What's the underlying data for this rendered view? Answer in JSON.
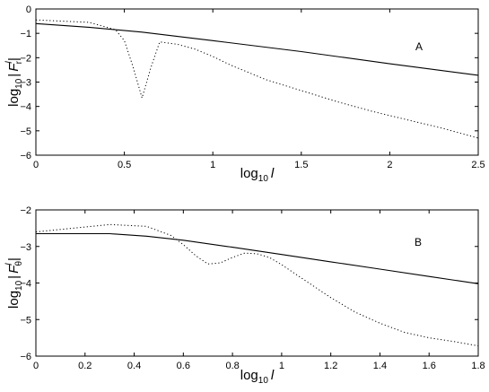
{
  "chart_data": [
    {
      "type": "line",
      "panel_label": "A",
      "xlabel": {
        "base": "log",
        "sub": "10",
        "var": "l"
      },
      "ylabel": {
        "base": "log",
        "sub": "10",
        "pre": "|",
        "var": "F",
        "sup": "l",
        "varsub": "r",
        "post": "|"
      },
      "xlim": [
        0,
        2.5
      ],
      "ylim": [
        -6,
        0
      ],
      "xticks": [
        0,
        0.5,
        1,
        1.5,
        2,
        2.5
      ],
      "xtick_labels": [
        "0",
        "0.5",
        "1",
        "1.5",
        "2",
        "2.5"
      ],
      "yticks": [
        0,
        -1,
        -2,
        -3,
        -4,
        -5,
        -6
      ],
      "ytick_labels": [
        "0",
        "−1",
        "−2",
        "−3",
        "−4",
        "−5",
        "−6"
      ],
      "grid": false,
      "series": [
        {
          "style": "solid",
          "x": [
            0,
            0.3,
            0.6,
            1.0,
            1.5,
            2.0,
            2.5
          ],
          "y": [
            -0.6,
            -0.75,
            -0.95,
            -1.3,
            -1.75,
            -2.25,
            -2.72
          ]
        },
        {
          "style": "dotted",
          "x": [
            0,
            0.15,
            0.3,
            0.45,
            0.5,
            0.55,
            0.6,
            0.65,
            0.7,
            0.8,
            0.9,
            1.0,
            1.1,
            1.3,
            1.5,
            1.7,
            1.9,
            2.1,
            2.3,
            2.5
          ],
          "y": [
            -0.45,
            -0.5,
            -0.55,
            -0.85,
            -1.3,
            -2.4,
            -3.65,
            -2.4,
            -1.35,
            -1.45,
            -1.65,
            -1.95,
            -2.3,
            -2.9,
            -3.35,
            -3.8,
            -4.2,
            -4.55,
            -4.9,
            -5.3
          ]
        }
      ]
    },
    {
      "type": "line",
      "panel_label": "B",
      "xlabel": {
        "base": "log",
        "sub": "10",
        "var": "l"
      },
      "ylabel": {
        "base": "log",
        "sub": "10",
        "pre": "|",
        "var": "F",
        "sup": "l",
        "varsub": "θ",
        "post": "|"
      },
      "xlim": [
        0,
        1.8
      ],
      "ylim": [
        -6,
        -2
      ],
      "xticks": [
        0,
        0.2,
        0.4,
        0.6,
        0.8,
        1.0,
        1.2,
        1.4,
        1.6,
        1.8
      ],
      "xtick_labels": [
        "0",
        "0.2",
        "0.4",
        "0.6",
        "0.8",
        "1",
        "1.2",
        "1.4",
        "1.6",
        "1.8"
      ],
      "yticks": [
        -2,
        -3,
        -4,
        -5,
        -6
      ],
      "ytick_labels": [
        "−2",
        "−3",
        "−4",
        "−5",
        "−6"
      ],
      "grid": false,
      "series": [
        {
          "style": "solid",
          "x": [
            0,
            0.3,
            0.45,
            0.6,
            0.8,
            1.0,
            1.2,
            1.4,
            1.6,
            1.8
          ],
          "y": [
            -2.65,
            -2.65,
            -2.72,
            -2.83,
            -3.02,
            -3.22,
            -3.42,
            -3.62,
            -3.82,
            -4.02
          ]
        },
        {
          "style": "dotted",
          "x": [
            0,
            0.15,
            0.3,
            0.45,
            0.55,
            0.6,
            0.65,
            0.7,
            0.75,
            0.8,
            0.85,
            0.9,
            0.95,
            1.0,
            1.1,
            1.2,
            1.3,
            1.4,
            1.5,
            1.6,
            1.7,
            1.8
          ],
          "y": [
            -2.6,
            -2.5,
            -2.4,
            -2.45,
            -2.7,
            -2.95,
            -3.25,
            -3.48,
            -3.45,
            -3.3,
            -3.18,
            -3.2,
            -3.3,
            -3.5,
            -3.95,
            -4.4,
            -4.8,
            -5.1,
            -5.35,
            -5.5,
            -5.6,
            -5.72
          ]
        }
      ]
    }
  ]
}
